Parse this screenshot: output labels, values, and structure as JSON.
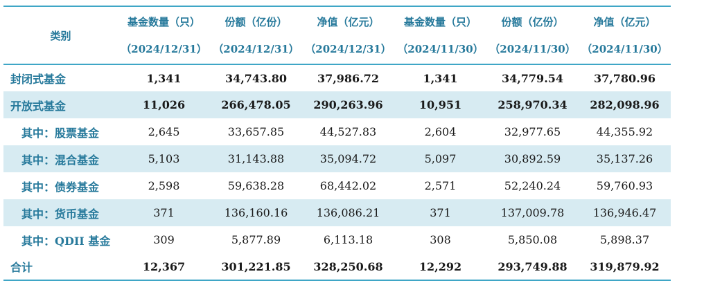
{
  "colors": {
    "rule_line": "#3FA6C6",
    "header_text": "#26799B",
    "label_text": "#26799B",
    "stripe_background": "#D7EBF2",
    "value_text": "#1A1A1A"
  },
  "table": {
    "columns": [
      {
        "label": "类别",
        "sub": ""
      },
      {
        "label": "基金数量（只）",
        "sub": "（2024/12/31）"
      },
      {
        "label": "份额（亿份）",
        "sub": "（2024/12/31）"
      },
      {
        "label": "净值（亿元）",
        "sub": "（2024/12/31）"
      },
      {
        "label": "基金数量（只）",
        "sub": "（2024/11/30）"
      },
      {
        "label": "份额（亿份）",
        "sub": "（2024/11/30）"
      },
      {
        "label": "净值（亿元）",
        "sub": "（2024/11/30）"
      }
    ],
    "rows": [
      {
        "label": "封闭式基金",
        "values": [
          "1,341",
          "34,743.80",
          "37,986.72",
          "1,341",
          "34,779.54",
          "37,780.96"
        ]
      },
      {
        "label": "开放式基金",
        "values": [
          "11,026",
          "266,478.05",
          "290,263.96",
          "10,951",
          "258,970.34",
          "282,098.96"
        ]
      },
      {
        "label": "其中：股票基金",
        "values": [
          "2,645",
          "33,657.85",
          "44,527.83",
          "2,604",
          "32,977.65",
          "44,355.92"
        ]
      },
      {
        "label": "其中：混合基金",
        "values": [
          "5,103",
          "31,143.88",
          "35,094.72",
          "5,097",
          "30,892.59",
          "35,137.26"
        ]
      },
      {
        "label": "其中：债券基金",
        "values": [
          "2,598",
          "59,638.28",
          "68,442.02",
          "2,571",
          "52,240.24",
          "59,760.93"
        ]
      },
      {
        "label": "其中：货币基金",
        "values": [
          "371",
          "136,160.16",
          "136,086.21",
          "371",
          "137,009.78",
          "136,946.47"
        ]
      },
      {
        "label": "其中：QDII 基金",
        "values": [
          "309",
          "5,877.89",
          "6,113.18",
          "308",
          "5,850.08",
          "5,898.37"
        ]
      },
      {
        "label": "合计",
        "values": [
          "12,367",
          "301,221.85",
          "328,250.68",
          "12,292",
          "293,749.88",
          "319,879.92"
        ]
      }
    ]
  }
}
